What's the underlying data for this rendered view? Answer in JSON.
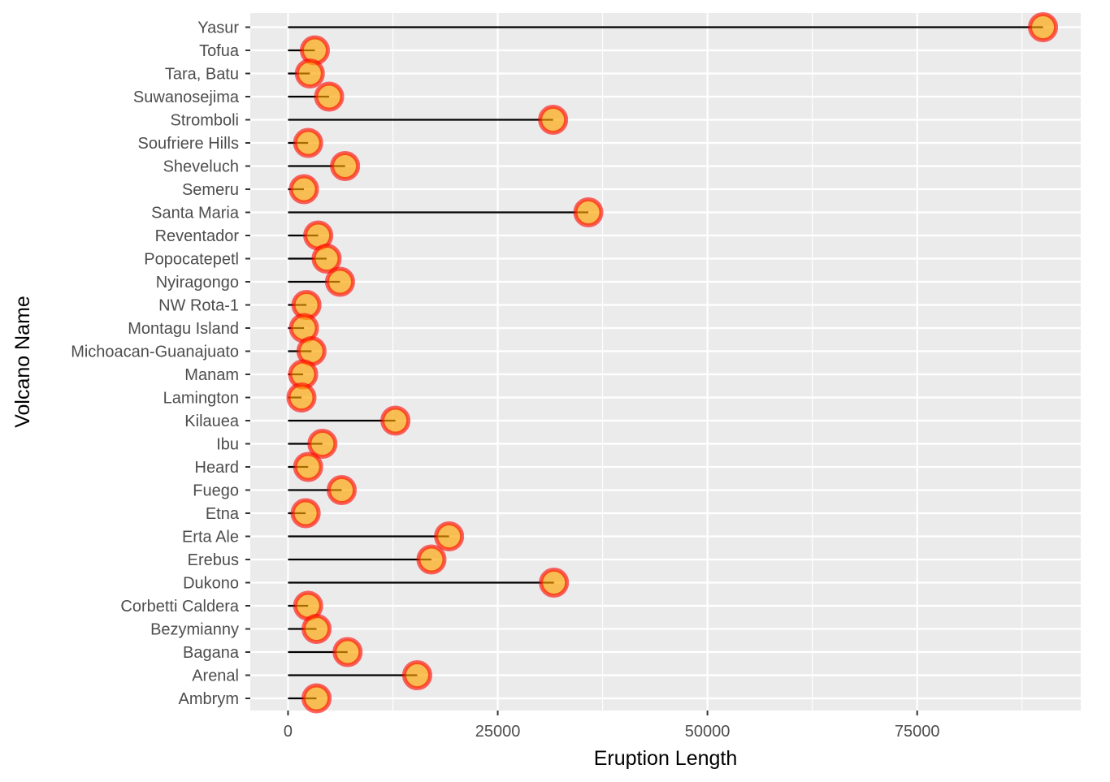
{
  "chart_data": {
    "type": "lollipop",
    "orientation": "horizontal",
    "xlabel": "Eruption Length",
    "ylabel": "Volcano Name",
    "xlim": [
      -4500,
      94500
    ],
    "x_ticks": [
      0,
      25000,
      50000,
      75000
    ],
    "grid": true,
    "background": "#EBEBEB",
    "colors": {
      "stem": "#000000",
      "point_fill": "#FFA500",
      "point_outline": "#FF0000",
      "grid": "#FFFFFF",
      "tick": "#333333"
    },
    "categories": [
      "Yasur",
      "Tofua",
      "Tara, Batu",
      "Suwanosejima",
      "Stromboli",
      "Soufriere Hills",
      "Sheveluch",
      "Semeru",
      "Santa Maria",
      "Reventador",
      "Popocatepetl",
      "Nyiragongo",
      "NW Rota-1",
      "Montagu Island",
      "Michoacan-Guanajuato",
      "Manam",
      "Lamington",
      "Kilauea",
      "Ibu",
      "Heard",
      "Fuego",
      "Etna",
      "Erta Ale",
      "Erebus",
      "Dukono",
      "Corbetti Caldera",
      "Bezymianny",
      "Bagana",
      "Arenal",
      "Ambrym"
    ],
    "values": [
      90000,
      3200,
      2600,
      4900,
      31600,
      2400,
      6800,
      1900,
      35800,
      3600,
      4600,
      6200,
      2200,
      1900,
      2800,
      1800,
      1600,
      12800,
      4100,
      2400,
      6400,
      2100,
      19200,
      17100,
      31700,
      2400,
      3400,
      7100,
      15400,
      3400
    ]
  }
}
